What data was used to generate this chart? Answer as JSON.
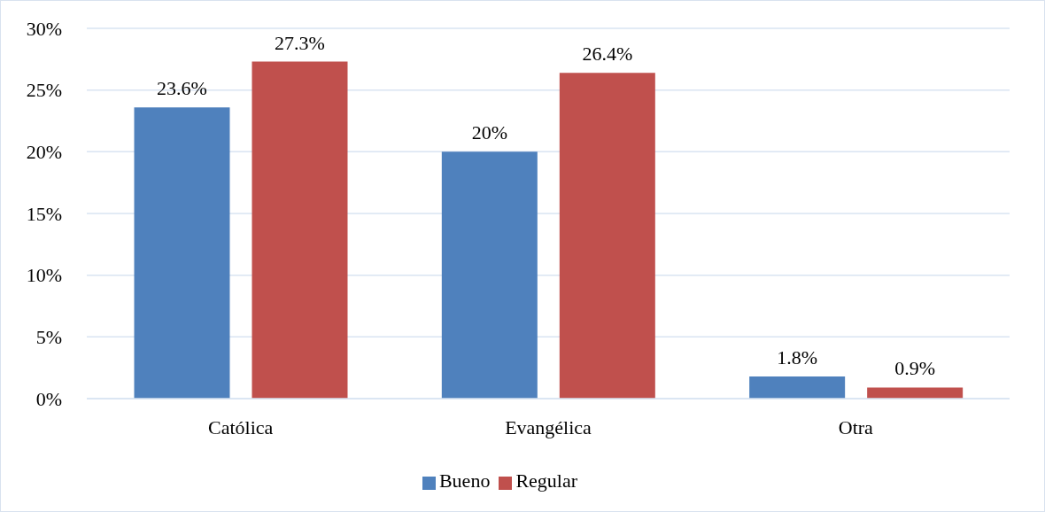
{
  "chart_data": {
    "type": "bar",
    "categories": [
      "Católica",
      "Evangélica",
      "Otra"
    ],
    "series": [
      {
        "name": "Bueno",
        "color": "#4f81bd",
        "values": [
          23.6,
          20,
          1.8
        ],
        "value_labels": [
          "23.6%",
          "20%",
          "1.8%"
        ]
      },
      {
        "name": "Regular",
        "color": "#c0504d",
        "values": [
          27.3,
          26.4,
          0.9
        ],
        "value_labels": [
          "27.3%",
          "26.4%",
          "0.9%"
        ]
      }
    ],
    "ylim": [
      0,
      30
    ],
    "yticks": [
      {
        "value": 0,
        "label": "0%"
      },
      {
        "value": 5,
        "label": "5%"
      },
      {
        "value": 10,
        "label": "10%"
      },
      {
        "value": 15,
        "label": "15%"
      },
      {
        "value": 20,
        "label": "20%"
      },
      {
        "value": 25,
        "label": "25%"
      },
      {
        "value": 30,
        "label": "30%"
      }
    ],
    "grid": "y",
    "legend": "bottom"
  }
}
